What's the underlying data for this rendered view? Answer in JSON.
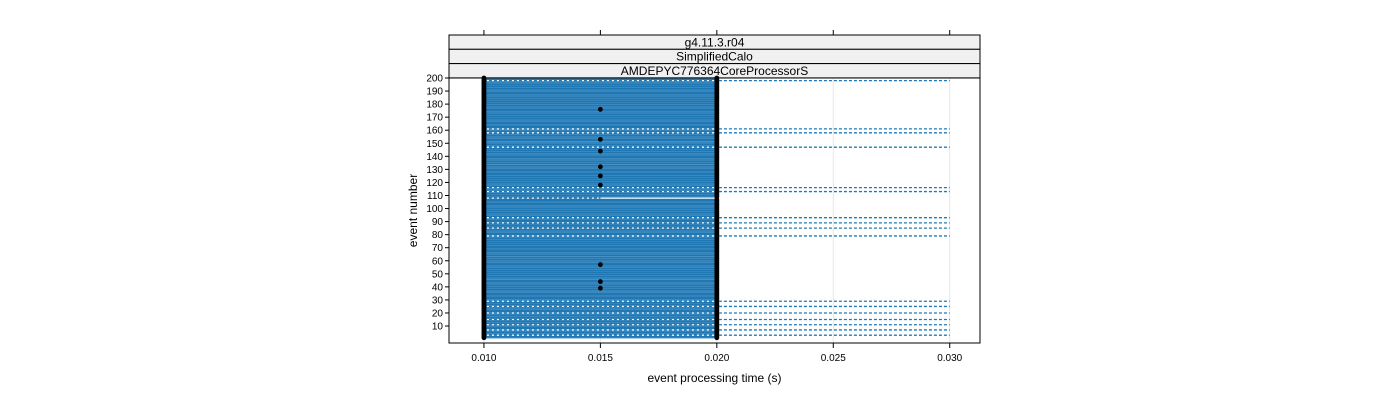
{
  "chart_data": {
    "type": "scatter",
    "strips": [
      "g4.11.3.r04",
      "SimplifiedCalo",
      "AMDEPYC776364CoreProcessorS"
    ],
    "xlabel": "event processing time (s)",
    "ylabel": "event number",
    "xlim": [
      0.0085,
      0.0313
    ],
    "ylim": [
      -3,
      200
    ],
    "xticks": [
      0.01,
      0.015,
      0.02,
      0.025,
      0.03
    ],
    "xtick_labels": [
      "0.010",
      "0.015",
      "0.020",
      "0.025",
      "0.030"
    ],
    "yticks": [
      10,
      20,
      30,
      40,
      50,
      60,
      70,
      80,
      90,
      100,
      110,
      120,
      130,
      140,
      150,
      160,
      170,
      180,
      190,
      200
    ],
    "ytick_labels": [
      "10",
      "20",
      "30",
      "40",
      "50",
      "60",
      "70",
      "80",
      "90",
      "100",
      "110",
      "120",
      "130",
      "140",
      "150",
      "160",
      "170",
      "180",
      "190",
      "200"
    ],
    "grid": true,
    "colors": {
      "segment": "#1f78b4",
      "point": "#000000",
      "strip_bg": "#f0f0f0",
      "grid": "#e6e6e6"
    },
    "events": {
      "start": 1,
      "end": 200,
      "typical_start": 0.01,
      "typical_end": 0.02
    },
    "long_events": [
      {
        "event": 3,
        "end": 0.03
      },
      {
        "event": 7,
        "end": 0.03
      },
      {
        "event": 11,
        "end": 0.03
      },
      {
        "event": 15,
        "end": 0.03
      },
      {
        "event": 20,
        "end": 0.03
      },
      {
        "event": 25,
        "end": 0.03
      },
      {
        "event": 29,
        "end": 0.03
      },
      {
        "event": 79,
        "end": 0.03
      },
      {
        "event": 85,
        "end": 0.03
      },
      {
        "event": 89,
        "end": 0.03
      },
      {
        "event": 93,
        "end": 0.03
      },
      {
        "event": 113,
        "end": 0.03
      },
      {
        "event": 116,
        "end": 0.03
      },
      {
        "event": 147,
        "end": 0.03
      },
      {
        "event": 158,
        "end": 0.03
      },
      {
        "event": 161,
        "end": 0.03
      },
      {
        "event": 198,
        "end": 0.03
      }
    ],
    "short_events": [
      {
        "event": 108,
        "end": 0.015
      }
    ],
    "mid_points": [
      {
        "event": 39,
        "time": 0.015
      },
      {
        "event": 44,
        "time": 0.015
      },
      {
        "event": 57,
        "time": 0.015
      },
      {
        "event": 118,
        "time": 0.015
      },
      {
        "event": 125,
        "time": 0.015
      },
      {
        "event": 132,
        "time": 0.015
      },
      {
        "event": 144,
        "time": 0.015
      },
      {
        "event": 153,
        "time": 0.015
      },
      {
        "event": 176,
        "time": 0.015
      }
    ]
  }
}
